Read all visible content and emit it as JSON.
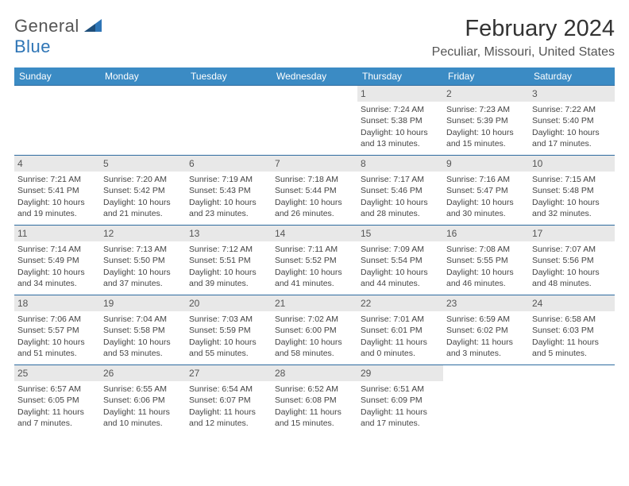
{
  "logo": {
    "general": "General",
    "blue": "Blue"
  },
  "title": "February 2024",
  "location": "Peculiar, Missouri, United States",
  "header_bg": "#3b8bc4",
  "weekdays": [
    "Sunday",
    "Monday",
    "Tuesday",
    "Wednesday",
    "Thursday",
    "Friday",
    "Saturday"
  ],
  "weeks": [
    [
      {
        "n": "",
        "sr": "",
        "ss": "",
        "d1": "",
        "d2": ""
      },
      {
        "n": "",
        "sr": "",
        "ss": "",
        "d1": "",
        "d2": ""
      },
      {
        "n": "",
        "sr": "",
        "ss": "",
        "d1": "",
        "d2": ""
      },
      {
        "n": "",
        "sr": "",
        "ss": "",
        "d1": "",
        "d2": ""
      },
      {
        "n": "1",
        "sr": "Sunrise: 7:24 AM",
        "ss": "Sunset: 5:38 PM",
        "d1": "Daylight: 10 hours",
        "d2": "and 13 minutes."
      },
      {
        "n": "2",
        "sr": "Sunrise: 7:23 AM",
        "ss": "Sunset: 5:39 PM",
        "d1": "Daylight: 10 hours",
        "d2": "and 15 minutes."
      },
      {
        "n": "3",
        "sr": "Sunrise: 7:22 AM",
        "ss": "Sunset: 5:40 PM",
        "d1": "Daylight: 10 hours",
        "d2": "and 17 minutes."
      }
    ],
    [
      {
        "n": "4",
        "sr": "Sunrise: 7:21 AM",
        "ss": "Sunset: 5:41 PM",
        "d1": "Daylight: 10 hours",
        "d2": "and 19 minutes."
      },
      {
        "n": "5",
        "sr": "Sunrise: 7:20 AM",
        "ss": "Sunset: 5:42 PM",
        "d1": "Daylight: 10 hours",
        "d2": "and 21 minutes."
      },
      {
        "n": "6",
        "sr": "Sunrise: 7:19 AM",
        "ss": "Sunset: 5:43 PM",
        "d1": "Daylight: 10 hours",
        "d2": "and 23 minutes."
      },
      {
        "n": "7",
        "sr": "Sunrise: 7:18 AM",
        "ss": "Sunset: 5:44 PM",
        "d1": "Daylight: 10 hours",
        "d2": "and 26 minutes."
      },
      {
        "n": "8",
        "sr": "Sunrise: 7:17 AM",
        "ss": "Sunset: 5:46 PM",
        "d1": "Daylight: 10 hours",
        "d2": "and 28 minutes."
      },
      {
        "n": "9",
        "sr": "Sunrise: 7:16 AM",
        "ss": "Sunset: 5:47 PM",
        "d1": "Daylight: 10 hours",
        "d2": "and 30 minutes."
      },
      {
        "n": "10",
        "sr": "Sunrise: 7:15 AM",
        "ss": "Sunset: 5:48 PM",
        "d1": "Daylight: 10 hours",
        "d2": "and 32 minutes."
      }
    ],
    [
      {
        "n": "11",
        "sr": "Sunrise: 7:14 AM",
        "ss": "Sunset: 5:49 PM",
        "d1": "Daylight: 10 hours",
        "d2": "and 34 minutes."
      },
      {
        "n": "12",
        "sr": "Sunrise: 7:13 AM",
        "ss": "Sunset: 5:50 PM",
        "d1": "Daylight: 10 hours",
        "d2": "and 37 minutes."
      },
      {
        "n": "13",
        "sr": "Sunrise: 7:12 AM",
        "ss": "Sunset: 5:51 PM",
        "d1": "Daylight: 10 hours",
        "d2": "and 39 minutes."
      },
      {
        "n": "14",
        "sr": "Sunrise: 7:11 AM",
        "ss": "Sunset: 5:52 PM",
        "d1": "Daylight: 10 hours",
        "d2": "and 41 minutes."
      },
      {
        "n": "15",
        "sr": "Sunrise: 7:09 AM",
        "ss": "Sunset: 5:54 PM",
        "d1": "Daylight: 10 hours",
        "d2": "and 44 minutes."
      },
      {
        "n": "16",
        "sr": "Sunrise: 7:08 AM",
        "ss": "Sunset: 5:55 PM",
        "d1": "Daylight: 10 hours",
        "d2": "and 46 minutes."
      },
      {
        "n": "17",
        "sr": "Sunrise: 7:07 AM",
        "ss": "Sunset: 5:56 PM",
        "d1": "Daylight: 10 hours",
        "d2": "and 48 minutes."
      }
    ],
    [
      {
        "n": "18",
        "sr": "Sunrise: 7:06 AM",
        "ss": "Sunset: 5:57 PM",
        "d1": "Daylight: 10 hours",
        "d2": "and 51 minutes."
      },
      {
        "n": "19",
        "sr": "Sunrise: 7:04 AM",
        "ss": "Sunset: 5:58 PM",
        "d1": "Daylight: 10 hours",
        "d2": "and 53 minutes."
      },
      {
        "n": "20",
        "sr": "Sunrise: 7:03 AM",
        "ss": "Sunset: 5:59 PM",
        "d1": "Daylight: 10 hours",
        "d2": "and 55 minutes."
      },
      {
        "n": "21",
        "sr": "Sunrise: 7:02 AM",
        "ss": "Sunset: 6:00 PM",
        "d1": "Daylight: 10 hours",
        "d2": "and 58 minutes."
      },
      {
        "n": "22",
        "sr": "Sunrise: 7:01 AM",
        "ss": "Sunset: 6:01 PM",
        "d1": "Daylight: 11 hours",
        "d2": "and 0 minutes."
      },
      {
        "n": "23",
        "sr": "Sunrise: 6:59 AM",
        "ss": "Sunset: 6:02 PM",
        "d1": "Daylight: 11 hours",
        "d2": "and 3 minutes."
      },
      {
        "n": "24",
        "sr": "Sunrise: 6:58 AM",
        "ss": "Sunset: 6:03 PM",
        "d1": "Daylight: 11 hours",
        "d2": "and 5 minutes."
      }
    ],
    [
      {
        "n": "25",
        "sr": "Sunrise: 6:57 AM",
        "ss": "Sunset: 6:05 PM",
        "d1": "Daylight: 11 hours",
        "d2": "and 7 minutes."
      },
      {
        "n": "26",
        "sr": "Sunrise: 6:55 AM",
        "ss": "Sunset: 6:06 PM",
        "d1": "Daylight: 11 hours",
        "d2": "and 10 minutes."
      },
      {
        "n": "27",
        "sr": "Sunrise: 6:54 AM",
        "ss": "Sunset: 6:07 PM",
        "d1": "Daylight: 11 hours",
        "d2": "and 12 minutes."
      },
      {
        "n": "28",
        "sr": "Sunrise: 6:52 AM",
        "ss": "Sunset: 6:08 PM",
        "d1": "Daylight: 11 hours",
        "d2": "and 15 minutes."
      },
      {
        "n": "29",
        "sr": "Sunrise: 6:51 AM",
        "ss": "Sunset: 6:09 PM",
        "d1": "Daylight: 11 hours",
        "d2": "and 17 minutes."
      },
      {
        "n": "",
        "sr": "",
        "ss": "",
        "d1": "",
        "d2": ""
      },
      {
        "n": "",
        "sr": "",
        "ss": "",
        "d1": "",
        "d2": ""
      }
    ]
  ]
}
